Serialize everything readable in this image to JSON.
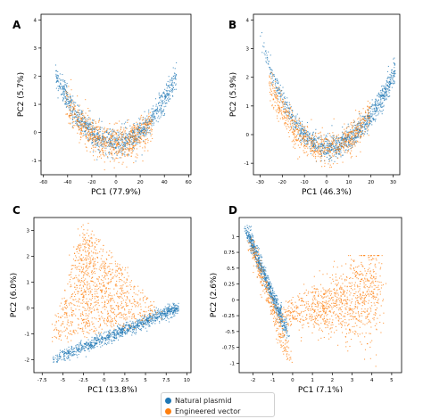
{
  "figure": {
    "colors": {
      "natural": "#1f77b4",
      "engineered": "#ff7f0e"
    },
    "legend": {
      "placement": "bottom-center",
      "items": [
        {
          "label": "Natural plasmid",
          "color": "#1f77b4"
        },
        {
          "label": "Engineered vector",
          "color": "#ff7f0e"
        }
      ]
    }
  },
  "chart_data": [
    {
      "panel": "A",
      "type": "scatter",
      "xlabel": "PC1 (77.9%)",
      "ylabel": "PC2 (5.7%)",
      "xlim": [
        -62,
        62
      ],
      "ylim": [
        -1.5,
        4.2
      ],
      "xticks": [
        -60,
        -40,
        -20,
        0,
        20,
        40,
        60
      ],
      "yticks": [
        -1,
        0,
        1,
        2,
        3,
        4
      ],
      "series": [
        {
          "name": "Natural plasmid",
          "color": "#1f77b4",
          "pattern": "U-shaped arc from (-50, 2.2) down to (0, -0.3) and up to (50, 2.0)"
        },
        {
          "name": "Engineered vector",
          "color": "#ff7f0e",
          "pattern": "points concentrated near bottom of arc, x -40 to 30, y -1.2 to 0.8"
        }
      ]
    },
    {
      "panel": "B",
      "type": "scatter",
      "xlabel": "PC1 (46.3%)",
      "ylabel": "PC2 (5.9%)",
      "xlim": [
        -33,
        33
      ],
      "ylim": [
        -1.4,
        4.2
      ],
      "xticks": [
        -30,
        -20,
        -10,
        0,
        10,
        20,
        30
      ],
      "yticks": [
        -1,
        0,
        1,
        2,
        3,
        4
      ],
      "series": [
        {
          "name": "Natural plasmid",
          "color": "#1f77b4",
          "pattern": "U-shaped arc from (-30, 3.3) down to (0, -0.5) and up to (30, 2.0), dense on right"
        },
        {
          "name": "Engineered vector",
          "color": "#ff7f0e",
          "pattern": "points along bottom of arc, x -25 to 20, y -0.9 to 1.0"
        }
      ]
    },
    {
      "panel": "C",
      "type": "scatter",
      "xlabel": "PC1 (13.8%)",
      "ylabel": "PC2 (6.0%)",
      "xlim": [
        -8.5,
        10.5
      ],
      "ylim": [
        -2.5,
        3.5
      ],
      "xticks": [
        -7.5,
        -5.0,
        -2.5,
        0.0,
        2.5,
        5.0,
        7.5,
        10.0
      ],
      "yticks": [
        -2,
        -1,
        0,
        1,
        2,
        3
      ],
      "series": [
        {
          "name": "Natural plasmid",
          "color": "#1f77b4",
          "pattern": "band from (-6, -2.0) rising to (9, 0.0)"
        },
        {
          "name": "Engineered vector",
          "color": "#ff7f0e",
          "pattern": "triangular cloud with vertex near (-2.5, 3.3), spread x -6.5 to 7, y -1.5 to 3.3"
        }
      ]
    },
    {
      "panel": "D",
      "type": "scatter",
      "xlabel": "PC1 (7.1%)",
      "ylabel": "PC2 (2.6%)",
      "xlim": [
        -2.7,
        5.5
      ],
      "ylim": [
        -1.15,
        1.3
      ],
      "xticks": [
        -2,
        -1,
        0,
        1,
        2,
        3,
        4,
        5
      ],
      "yticks": [
        -1.0,
        -0.75,
        -0.5,
        -0.25,
        0.0,
        0.25,
        0.5,
        0.75,
        1.0
      ],
      "series": [
        {
          "name": "Natural plasmid",
          "color": "#1f77b4",
          "pattern": "narrow diagonal streak from (-2.3, 1.1) down to (-0.2, -0.5)"
        },
        {
          "name": "Engineered vector",
          "color": "#ff7f0e",
          "pattern": "diagonal streak plus broad cloud spanning x -1 to 4.5, y -1.0 to 0.6, dense near (3, 0.1)"
        }
      ]
    }
  ]
}
